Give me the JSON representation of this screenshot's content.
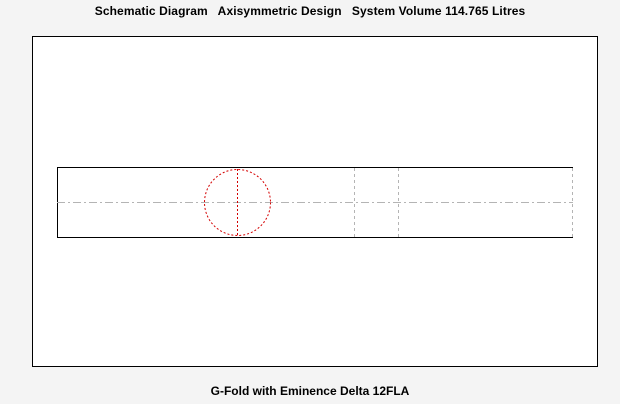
{
  "header": {
    "title": "Schematic Diagram   Axisymmetric Design   System Volume 114.765 Litres"
  },
  "diagram": {
    "caption": "G-Fold with Eminence Delta 12FLA",
    "colors": {
      "outline": "#000000",
      "centerline": "#b4b4b4",
      "driver": "#d40000",
      "background": "#ffffff"
    }
  }
}
